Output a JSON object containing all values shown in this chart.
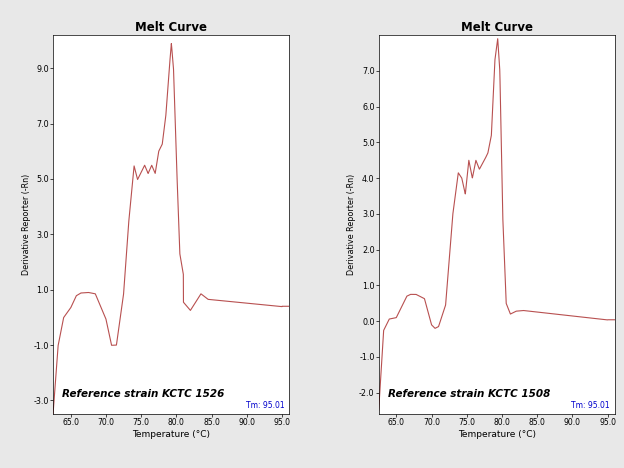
{
  "title": "Melt Curve",
  "xlabel": "Temperature (°C)",
  "ylabel": "Derivative Reporter (-Rn)",
  "bg_color": "#e8e8e8",
  "plot_bg_color": "#ffffff",
  "line_color": "#b85050",
  "label1": "Reference strain KCTC 1526",
  "label2": "Reference strain KCTC 1508",
  "tm_label": "Tm: 95.01",
  "plot1": {
    "ylim": [
      -3.5,
      10.2
    ],
    "yticks": [
      -3.0,
      -1.0,
      1.0,
      3.0,
      5.0,
      7.0,
      9.0
    ],
    "xticks": [
      65.0,
      70.0,
      75.0,
      80.0,
      85.0,
      90.0,
      95.0
    ],
    "xlim": [
      62.5,
      96.0
    ]
  },
  "plot2": {
    "ylim": [
      -2.6,
      8.0
    ],
    "yticks": [
      -2.0,
      -1.0,
      0.0,
      1.0,
      2.0,
      3.0,
      4.0,
      5.0,
      6.0,
      7.0
    ],
    "xticks": [
      65.0,
      70.0,
      75.0,
      80.0,
      85.0,
      90.0,
      95.0
    ],
    "xlim": [
      62.5,
      96.0
    ]
  }
}
